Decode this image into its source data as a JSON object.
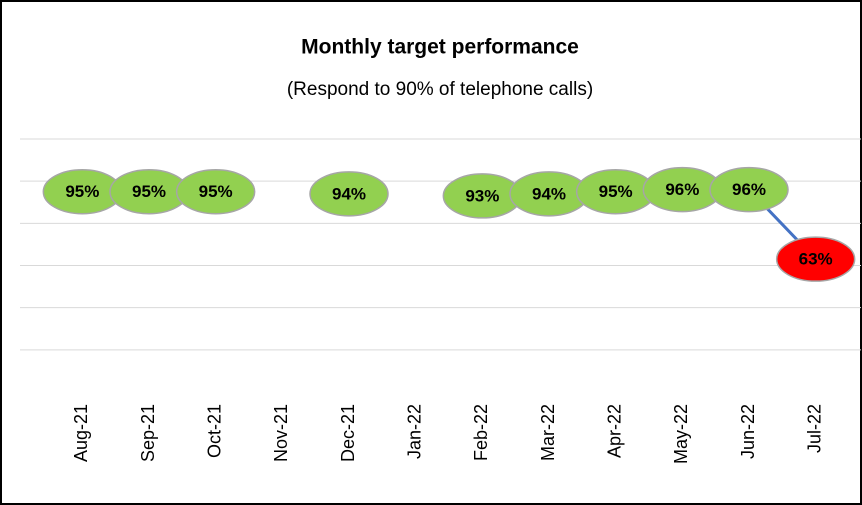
{
  "chart_data": {
    "type": "line",
    "title": "Monthly target performance",
    "subtitle": "(Respond to 90% of telephone calls)",
    "categories": [
      "Aug-21",
      "Sep-21",
      "Oct-21",
      "Nov-21",
      "Dec-21",
      "Jan-22",
      "Feb-22",
      "Mar-22",
      "Apr-22",
      "May-22",
      "Jun-22",
      "Jul-22"
    ],
    "series": [
      {
        "color": "#4472c4",
        "values": [
          95,
          95,
          95,
          null,
          94,
          null,
          93,
          94,
          95,
          96,
          96,
          63
        ],
        "value_labels": [
          "95%",
          "95%",
          "95%",
          null,
          "94%",
          null,
          "93%",
          "94%",
          "95%",
          "96%",
          "96%",
          "63%"
        ],
        "point_colors": [
          "#92d050",
          "#92d050",
          "#92d050",
          null,
          "#92d050",
          null,
          "#92d050",
          "#92d050",
          "#92d050",
          "#92d050",
          "#92d050",
          "#ff0000"
        ]
      }
    ],
    "ylim": [
      0,
      120
    ],
    "yticks": [
      0,
      20,
      40,
      60,
      80,
      100,
      120
    ],
    "grid": true
  }
}
